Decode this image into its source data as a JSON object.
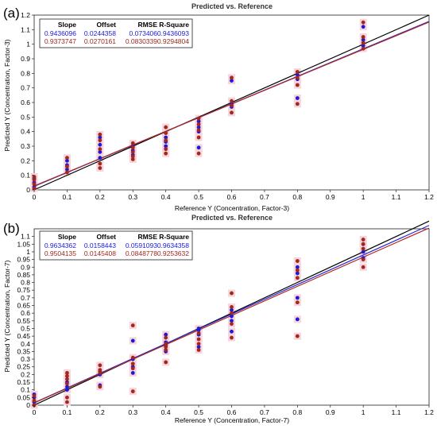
{
  "chart_data": [
    {
      "type": "scatter",
      "panel_label": "(a)",
      "title": "Predicted vs. Reference",
      "xlabel": "Reference Y (Concentration, Factor-3)",
      "ylabel": "Predicted Y (Concentration, Factor-3)",
      "xlim": [
        0,
        1.2
      ],
      "ylim": [
        0,
        1.2
      ],
      "xticks": [
        "0",
        "0.1",
        "0.2",
        "0.3",
        "0.4",
        "0.5",
        "0.6",
        "0.7",
        "0.8",
        "0.9",
        "1",
        "1.1",
        "1.2"
      ],
      "yticks": [
        "0",
        "0.1",
        "0.2",
        "0.3",
        "0.4",
        "0.5",
        "0.6",
        "0.7",
        "0.8",
        "0.9",
        "1",
        "1.1",
        "1.2"
      ],
      "grid": false,
      "stats_table": {
        "columns": [
          "Slope",
          "Offset",
          "RMSE",
          "R-Square"
        ],
        "rows": [
          {
            "values": [
              "0.9436096",
              "0.0244358",
              "0.073406",
              "0.9436093"
            ],
            "color": "#1a1ad8"
          },
          {
            "values": [
              "0.9373747",
              "0.0270161",
              "0.0830339",
              "0.9294804"
            ],
            "color": "#a0281c"
          }
        ]
      },
      "lines": [
        {
          "kind": "target",
          "color": "#000000",
          "points": [
            [
              0,
              0
            ],
            [
              1.2,
              1.2
            ]
          ]
        },
        {
          "kind": "calibration",
          "color": "#2a2ad0",
          "points": [
            [
              0,
              0.0244
            ],
            [
              1.2,
              1.157
            ]
          ]
        },
        {
          "kind": "validation",
          "color": "#b02a22",
          "points": [
            [
              0,
              0.027
            ],
            [
              1.2,
              1.152
            ]
          ]
        }
      ],
      "series": [
        {
          "color": "#1a1ad8",
          "points": [
            [
              0,
              0.02
            ],
            [
              0,
              0.05
            ],
            [
              0,
              0.08
            ],
            [
              0.1,
              0.14
            ],
            [
              0.1,
              0.17
            ],
            [
              0.1,
              0.2
            ],
            [
              0.2,
              0.22
            ],
            [
              0.2,
              0.26
            ],
            [
              0.2,
              0.31
            ],
            [
              0.2,
              0.36
            ],
            [
              0.3,
              0.24
            ],
            [
              0.3,
              0.27
            ],
            [
              0.3,
              0.3
            ],
            [
              0.4,
              0.3
            ],
            [
              0.4,
              0.33
            ],
            [
              0.4,
              0.36
            ],
            [
              0.5,
              0.29
            ],
            [
              0.5,
              0.4
            ],
            [
              0.5,
              0.43
            ],
            [
              0.5,
              0.47
            ],
            [
              0.6,
              0.57
            ],
            [
              0.6,
              0.59
            ],
            [
              0.6,
              0.75
            ],
            [
              0.8,
              0.63
            ],
            [
              0.8,
              0.76
            ],
            [
              0.8,
              0.79
            ],
            [
              1,
              0.99
            ],
            [
              1,
              1.03
            ],
            [
              1,
              1.12
            ]
          ]
        },
        {
          "color": "#a0281c",
          "points": [
            [
              0,
              0.01
            ],
            [
              0,
              0.04
            ],
            [
              0,
              0.07
            ],
            [
              0,
              0.09
            ],
            [
              0.1,
              0.12
            ],
            [
              0.1,
              0.16
            ],
            [
              0.1,
              0.22
            ],
            [
              0.2,
              0.15
            ],
            [
              0.2,
              0.18
            ],
            [
              0.2,
              0.28
            ],
            [
              0.2,
              0.34
            ],
            [
              0.2,
              0.38
            ],
            [
              0.3,
              0.21
            ],
            [
              0.3,
              0.23
            ],
            [
              0.3,
              0.26
            ],
            [
              0.3,
              0.29
            ],
            [
              0.3,
              0.32
            ],
            [
              0.4,
              0.25
            ],
            [
              0.4,
              0.28
            ],
            [
              0.4,
              0.34
            ],
            [
              0.4,
              0.39
            ],
            [
              0.4,
              0.43
            ],
            [
              0.5,
              0.25
            ],
            [
              0.5,
              0.36
            ],
            [
              0.5,
              0.41
            ],
            [
              0.5,
              0.45
            ],
            [
              0.5,
              0.49
            ],
            [
              0.6,
              0.53
            ],
            [
              0.6,
              0.58
            ],
            [
              0.6,
              0.61
            ],
            [
              0.6,
              0.77
            ],
            [
              0.8,
              0.59
            ],
            [
              0.8,
              0.72
            ],
            [
              0.8,
              0.77
            ],
            [
              0.8,
              0.81
            ],
            [
              1,
              0.97
            ],
            [
              1,
              1.01
            ],
            [
              1,
              1.05
            ],
            [
              1,
              1.15
            ]
          ]
        }
      ]
    },
    {
      "type": "scatter",
      "panel_label": "(b)",
      "title": "Predicted vs. Reference",
      "xlabel": "Reference Y (Concentration, Factor-7)",
      "ylabel": "Predicted Y (Concentration, Factor-7)",
      "xlim": [
        0,
        1.2
      ],
      "ylim": [
        0,
        1.15
      ],
      "xticks": [
        "0",
        "0.1",
        "0.2",
        "0.3",
        "0.4",
        "0.5",
        "0.6",
        "0.7",
        "0.8",
        "0.9",
        "1",
        "1.1",
        "1.2"
      ],
      "yticks": [
        "0",
        "0.05",
        "0.1",
        "0.15",
        "0.2",
        "0.25",
        "0.3",
        "0.35",
        "0.4",
        "0.45",
        "0.5",
        "0.55",
        "0.6",
        "0.65",
        "0.7",
        "0.75",
        "0.8",
        "0.85",
        "0.9",
        "0.95",
        "1",
        "1.05",
        "1.1"
      ],
      "grid": false,
      "stats_table": {
        "columns": [
          "Slope",
          "Offset",
          "RMSE",
          "R-Square"
        ],
        "rows": [
          {
            "values": [
              "0.9634362",
              "0.0158443",
              "0.0591093",
              "0.9634358"
            ],
            "color": "#1a1ad8"
          },
          {
            "values": [
              "0.9504135",
              "0.0145408",
              "0.0848778",
              "0.9253632"
            ],
            "color": "#a0281c"
          }
        ]
      },
      "lines": [
        {
          "kind": "target",
          "color": "#000000",
          "points": [
            [
              0,
              0
            ],
            [
              1.2,
              1.2
            ]
          ]
        },
        {
          "kind": "calibration",
          "color": "#2a2ad0",
          "points": [
            [
              0,
              0.0158
            ],
            [
              1.2,
              1.172
            ]
          ]
        },
        {
          "kind": "validation",
          "color": "#b02a22",
          "points": [
            [
              0,
              0.0145
            ],
            [
              1.2,
              1.155
            ]
          ]
        }
      ],
      "series": [
        {
          "color": "#1a1ad8",
          "points": [
            [
              0,
              0.02
            ],
            [
              0,
              0.05
            ],
            [
              0,
              0.07
            ],
            [
              0.1,
              0.1
            ],
            [
              0.1,
              0.12
            ],
            [
              0.1,
              0.15
            ],
            [
              0.2,
              0.13
            ],
            [
              0.2,
              0.2
            ],
            [
              0.2,
              0.22
            ],
            [
              0.3,
              0.21
            ],
            [
              0.3,
              0.25
            ],
            [
              0.3,
              0.3
            ],
            [
              0.3,
              0.42
            ],
            [
              0.4,
              0.35
            ],
            [
              0.4,
              0.39
            ],
            [
              0.4,
              0.41
            ],
            [
              0.4,
              0.46
            ],
            [
              0.5,
              0.38
            ],
            [
              0.5,
              0.46
            ],
            [
              0.5,
              0.49
            ],
            [
              0.5,
              0.5
            ],
            [
              0.6,
              0.48
            ],
            [
              0.6,
              0.55
            ],
            [
              0.6,
              0.58
            ],
            [
              0.6,
              0.62
            ],
            [
              0.8,
              0.56
            ],
            [
              0.8,
              0.7
            ],
            [
              0.8,
              0.86
            ],
            [
              0.8,
              0.9
            ],
            [
              1,
              0.96
            ],
            [
              1,
              1.0
            ],
            [
              1,
              1.05
            ]
          ]
        },
        {
          "color": "#a0281c",
          "points": [
            [
              0,
              0.0
            ],
            [
              0,
              0.03
            ],
            [
              0,
              0.06
            ],
            [
              0.1,
              0.02
            ],
            [
              0.1,
              0.05
            ],
            [
              0.1,
              0.14
            ],
            [
              0.1,
              0.17
            ],
            [
              0.1,
              0.19
            ],
            [
              0.1,
              0.21
            ],
            [
              0.2,
              0.12
            ],
            [
              0.2,
              0.21
            ],
            [
              0.2,
              0.23
            ],
            [
              0.2,
              0.26
            ],
            [
              0.3,
              0.09
            ],
            [
              0.3,
              0.24
            ],
            [
              0.3,
              0.27
            ],
            [
              0.3,
              0.31
            ],
            [
              0.3,
              0.52
            ],
            [
              0.4,
              0.28
            ],
            [
              0.4,
              0.36
            ],
            [
              0.4,
              0.38
            ],
            [
              0.4,
              0.4
            ],
            [
              0.4,
              0.44
            ],
            [
              0.5,
              0.36
            ],
            [
              0.5,
              0.4
            ],
            [
              0.5,
              0.43
            ],
            [
              0.5,
              0.47
            ],
            [
              0.6,
              0.44
            ],
            [
              0.6,
              0.53
            ],
            [
              0.6,
              0.6
            ],
            [
              0.6,
              0.64
            ],
            [
              0.6,
              0.73
            ],
            [
              0.8,
              0.45
            ],
            [
              0.8,
              0.67
            ],
            [
              0.8,
              0.83
            ],
            [
              0.8,
              0.88
            ],
            [
              0.8,
              0.94
            ],
            [
              1,
              0.9
            ],
            [
              1,
              0.95
            ],
            [
              1,
              1.02
            ],
            [
              1,
              1.05
            ],
            [
              1,
              1.08
            ]
          ]
        }
      ]
    }
  ]
}
